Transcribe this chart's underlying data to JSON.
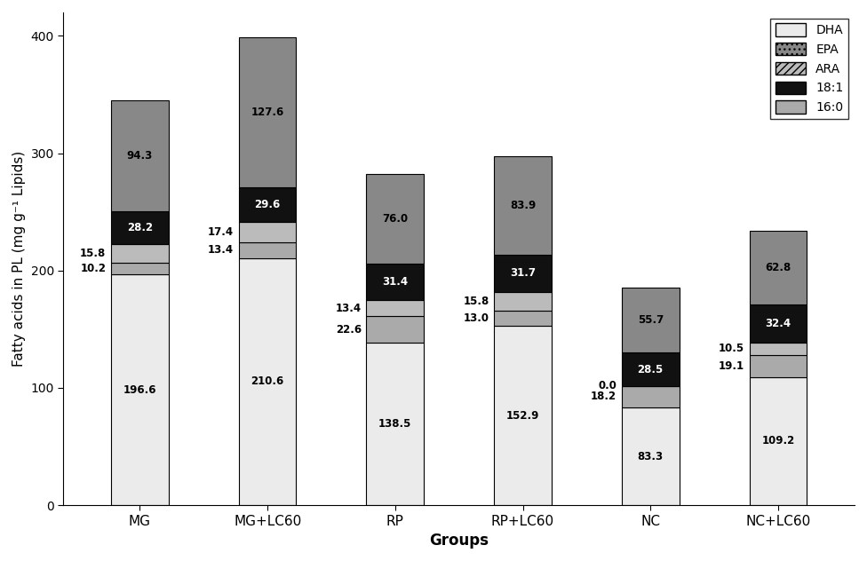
{
  "groups": [
    "MG",
    "MG+LC60",
    "RP",
    "RP+LC60",
    "NC",
    "NC+LC60"
  ],
  "DHA": [
    196.6,
    210.6,
    138.5,
    152.9,
    83.3,
    109.2
  ],
  "16_0": [
    10.2,
    13.4,
    22.6,
    13.0,
    18.2,
    19.1
  ],
  "ARA": [
    15.8,
    17.4,
    13.4,
    15.8,
    0.0,
    10.5
  ],
  "18_1": [
    28.2,
    29.6,
    31.4,
    31.7,
    28.5,
    32.4
  ],
  "EPA": [
    94.3,
    127.6,
    76.0,
    83.9,
    55.7,
    62.8
  ],
  "c_DHA": "#ebebeb",
  "c_16_0": "#aaaaaa",
  "c_ARA": "#bbbbbb",
  "c_18_1": "#111111",
  "c_EPA": "#888888",
  "ylabel": "Fatty acids in PL (mg g⁻¹ Lipids)",
  "xlabel": "Groups",
  "ylim": [
    0,
    420
  ],
  "yticks": [
    0,
    100,
    200,
    300,
    400
  ],
  "figsize": [
    9.76,
    6.32
  ],
  "dpi": 100
}
